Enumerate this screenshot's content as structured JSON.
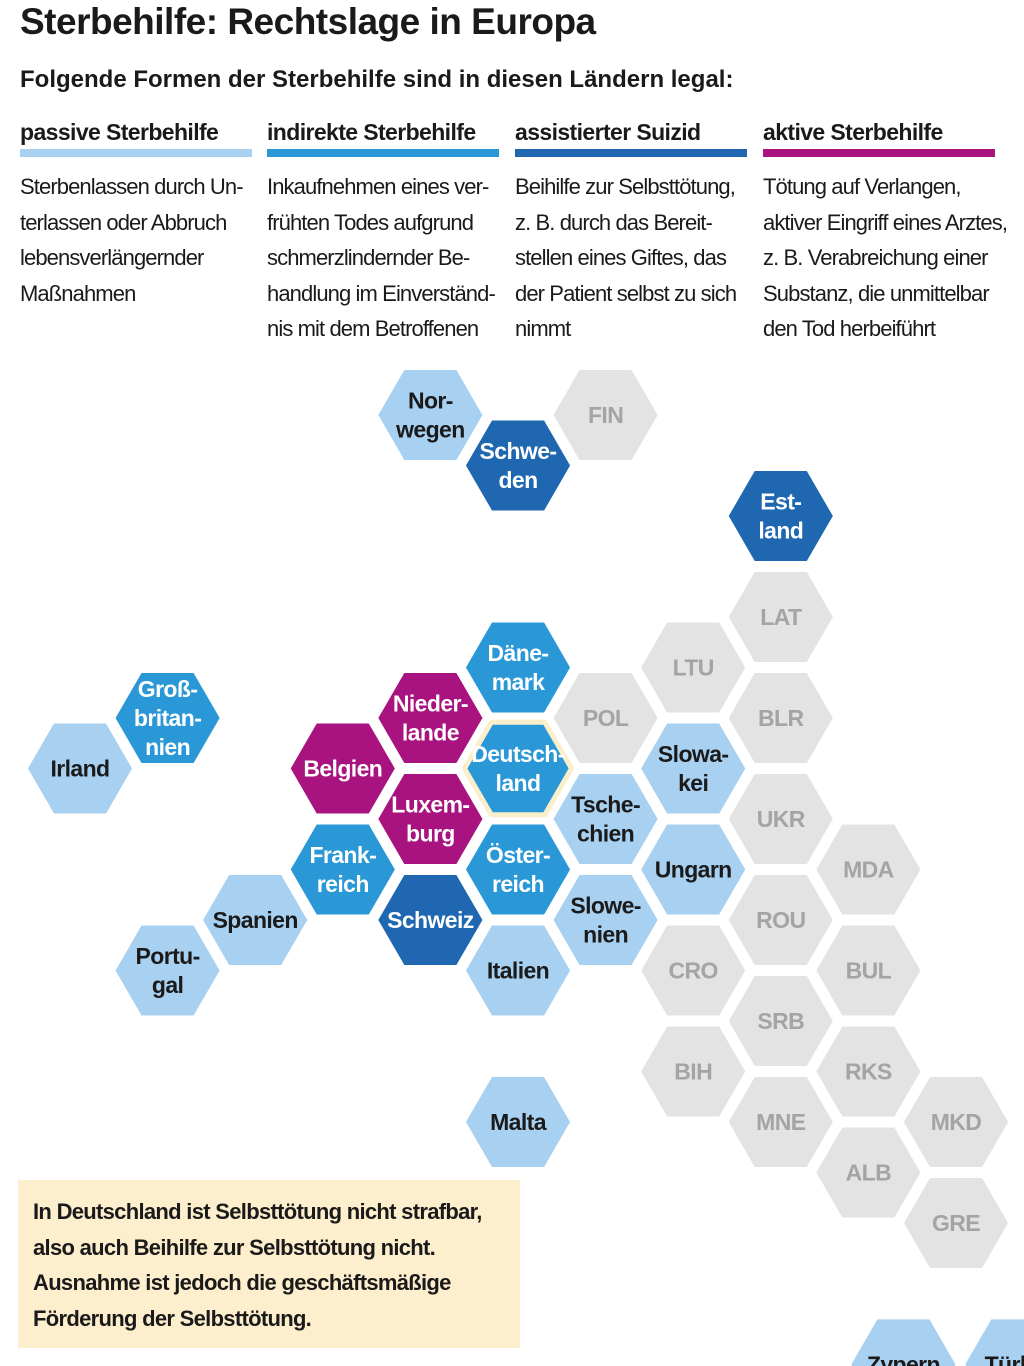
{
  "title": "Sterbehilfe: Rechtslage in Europa",
  "subtitle": "Folgende Formen der Sterbehilfe sind in diesen Ländern legal:",
  "colors": {
    "passive": "#a8d0f0",
    "indirect": "#2a98d6",
    "assisted": "#1f67b1",
    "active": "#a8137f",
    "none": "#e3e3e3",
    "note_bg": "#fdefcd",
    "highlight_border": "#fbeecb"
  },
  "legend": [
    {
      "key": "passive",
      "title": "passive Sterbehilfe",
      "lines": [
        "Sterbenlassen durch Un-",
        "terlassen oder Abbruch",
        "lebensverlängernder",
        "Maßnahmen"
      ]
    },
    {
      "key": "indirect",
      "title": "indirekte Sterbehilfe",
      "lines": [
        "Inkaufnehmen eines ver-",
        "frühten Todes aufgrund",
        "schmerzlindernder Be-",
        "handlung im Einverständ-",
        "nis mit dem Betroffenen"
      ]
    },
    {
      "key": "assisted",
      "title": "assistierter Suizid",
      "lines": [
        "Beihilfe zur Selbsttötung,",
        "z. B. durch das Bereit-",
        "stellen eines Giftes, das",
        "der Patient selbst zu sich",
        "nimmt"
      ]
    },
    {
      "key": "active",
      "title": "aktive Sterbehilfe",
      "lines": [
        "Tötung auf Verlangen,",
        "aktiver Eingriff eines Arztes,",
        "z. B. Verabreichung einer",
        "Substanz, die unmittelbar",
        "den Tod herbeiführt"
      ]
    }
  ],
  "countries": [
    {
      "lines": [
        "Nor-",
        "wegen"
      ],
      "status": "passive",
      "col": 4,
      "row": 0
    },
    {
      "lines": [
        "FIN"
      ],
      "status": "none",
      "col": 6,
      "row": 0
    },
    {
      "lines": [
        "Schwe-",
        "den"
      ],
      "status": "assisted",
      "col": 5,
      "row": 1
    },
    {
      "lines": [
        "Est-",
        "land"
      ],
      "status": "assisted",
      "col": 8,
      "row": 2
    },
    {
      "lines": [
        "LAT"
      ],
      "status": "none",
      "col": 8,
      "row": 4
    },
    {
      "lines": [
        "Däne-",
        "mark"
      ],
      "status": "indirect",
      "col": 5,
      "row": 5
    },
    {
      "lines": [
        "LTU"
      ],
      "status": "none",
      "col": 7,
      "row": 5
    },
    {
      "lines": [
        "Groß-",
        "britan-",
        "nien"
      ],
      "status": "indirect",
      "col": 1,
      "row": 6
    },
    {
      "lines": [
        "Nieder-",
        "lande"
      ],
      "status": "active",
      "col": 4,
      "row": 6
    },
    {
      "lines": [
        "POL"
      ],
      "status": "none",
      "col": 6,
      "row": 6
    },
    {
      "lines": [
        "BLR"
      ],
      "status": "none",
      "col": 8,
      "row": 6
    },
    {
      "lines": [
        "Irland"
      ],
      "status": "passive",
      "col": 0,
      "row": 7
    },
    {
      "lines": [
        "Belgien"
      ],
      "status": "active",
      "col": 3,
      "row": 7
    },
    {
      "lines": [
        "Deutsch-",
        "land"
      ],
      "status": "indirect",
      "col": 5,
      "row": 7,
      "highlight": true
    },
    {
      "lines": [
        "Slowa-",
        "kei"
      ],
      "status": "passive",
      "col": 7,
      "row": 7
    },
    {
      "lines": [
        "Luxem-",
        "burg"
      ],
      "status": "active",
      "col": 4,
      "row": 8
    },
    {
      "lines": [
        "Tsche-",
        "chien"
      ],
      "status": "passive",
      "col": 6,
      "row": 8
    },
    {
      "lines": [
        "UKR"
      ],
      "status": "none",
      "col": 8,
      "row": 8
    },
    {
      "lines": [
        "Frank-",
        "reich"
      ],
      "status": "indirect",
      "col": 3,
      "row": 9
    },
    {
      "lines": [
        "Öster-",
        "reich"
      ],
      "status": "indirect",
      "col": 5,
      "row": 9
    },
    {
      "lines": [
        "Ungarn"
      ],
      "status": "passive",
      "col": 7,
      "row": 9
    },
    {
      "lines": [
        "MDA"
      ],
      "status": "none",
      "col": 9,
      "row": 9
    },
    {
      "lines": [
        "Spanien"
      ],
      "status": "passive",
      "col": 2,
      "row": 10
    },
    {
      "lines": [
        "Schweiz"
      ],
      "status": "assisted",
      "col": 4,
      "row": 10
    },
    {
      "lines": [
        "Slowe-",
        "nien"
      ],
      "status": "passive",
      "col": 6,
      "row": 10
    },
    {
      "lines": [
        "ROU"
      ],
      "status": "none",
      "col": 8,
      "row": 10
    },
    {
      "lines": [
        "Portu-",
        "gal"
      ],
      "status": "passive",
      "col": 1,
      "row": 11
    },
    {
      "lines": [
        "Italien"
      ],
      "status": "passive",
      "col": 5,
      "row": 11
    },
    {
      "lines": [
        "CRO"
      ],
      "status": "none",
      "col": 7,
      "row": 11
    },
    {
      "lines": [
        "BUL"
      ],
      "status": "none",
      "col": 9,
      "row": 11
    },
    {
      "lines": [
        "SRB"
      ],
      "status": "none",
      "col": 8,
      "row": 12
    },
    {
      "lines": [
        "BIH"
      ],
      "status": "none",
      "col": 7,
      "row": 13
    },
    {
      "lines": [
        "RKS"
      ],
      "status": "none",
      "col": 9,
      "row": 13
    },
    {
      "lines": [
        "Malta"
      ],
      "status": "passive",
      "col": 5,
      "row": 14
    },
    {
      "lines": [
        "MNE"
      ],
      "status": "none",
      "col": 8,
      "row": 14
    },
    {
      "lines": [
        "MKD"
      ],
      "status": "none",
      "col": 10,
      "row": 14
    },
    {
      "lines": [
        "ALB"
      ],
      "status": "none",
      "col": 9,
      "row": 15
    },
    {
      "lines": [
        "GRE"
      ],
      "status": "none",
      "col": 10,
      "row": 16
    },
    {
      "lines": [
        "Zypern"
      ],
      "status": "passive",
      "col": 9.4,
      "row": 18.8
    },
    {
      "lines": [
        "Türkei"
      ],
      "status": "passive",
      "col": 10.7,
      "row": 18.8
    }
  ],
  "note": {
    "lines": [
      "In Deutschland ist Selbsttötung nicht strafbar,",
      "also auch Beihilfe zur Selbsttötung nicht.",
      "Ausnahme ist jedoch die geschäftsmäßige",
      "Förderung der Selbsttötung."
    ]
  }
}
